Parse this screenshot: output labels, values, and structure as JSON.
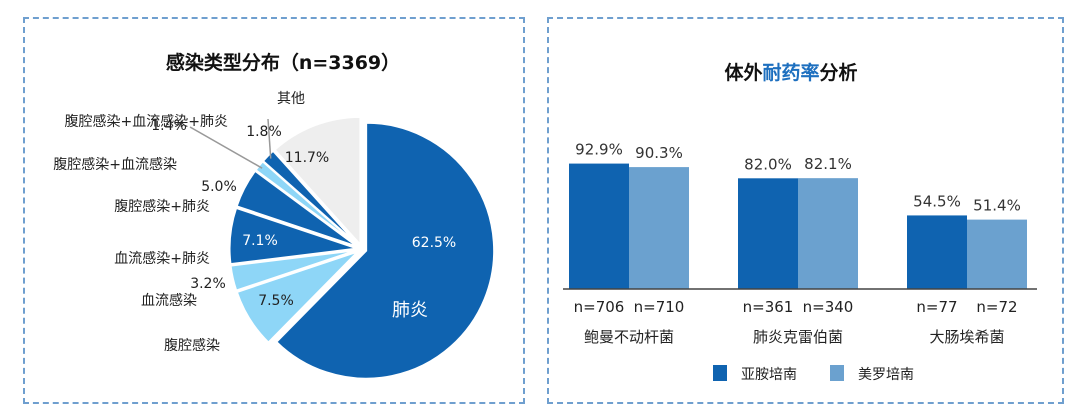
{
  "colors": {
    "dark_blue": "#0f63b0",
    "light_blue": "#6ba1cf",
    "sky_blue": "#8ed6f7",
    "gray": "#eeeeee",
    "border": "#6f9fcf",
    "title_accent": "#1d6fbf"
  },
  "chart_data": [
    {
      "type": "pie",
      "title": "感染类型分布（n=3369）",
      "slices": [
        {
          "label": "肺炎",
          "value": 62.5,
          "value_label": "62.5%",
          "color": "#0f63b0"
        },
        {
          "label": "腹腔感染",
          "value": 7.5,
          "value_label": "7.5%",
          "color": "#8ed6f7"
        },
        {
          "label": "血流感染",
          "value": 3.2,
          "value_label": "3.2%",
          "color": "#8ed6f7"
        },
        {
          "label": "血流感染+肺炎",
          "value": 7.1,
          "value_label": "7.1%",
          "color": "#0f63b0"
        },
        {
          "label": "腹腔感染+肺炎",
          "value": 5.0,
          "value_label": "5.0%",
          "color": "#0f63b0"
        },
        {
          "label": "腹腔感染+血流感染",
          "value": 1.4,
          "value_label": "1.4%",
          "color": "#8ed6f7"
        },
        {
          "label": "腹腔感染+血流感染+肺炎",
          "value": 1.8,
          "value_label": "1.8%",
          "color": "#0f63b0"
        },
        {
          "label": "其他",
          "value": 11.7,
          "value_label": "11.7%",
          "color": "#eeeeee"
        }
      ]
    },
    {
      "type": "bar",
      "title_parts": [
        "体外",
        "耐药率",
        "分析"
      ],
      "categories": [
        "鲍曼不动杆菌",
        "肺炎克雷伯菌",
        "大肠埃希菌"
      ],
      "series": [
        {
          "name": "亚胺培南",
          "values": [
            92.9,
            82.0,
            54.5
          ],
          "value_labels": [
            "92.9%",
            "82.0%",
            "54.5%"
          ],
          "n_labels": [
            "n=706",
            "n=361",
            "n=77"
          ],
          "color": "#0f63b0"
        },
        {
          "name": "美罗培南",
          "values": [
            90.3,
            82.1,
            51.4
          ],
          "value_labels": [
            "90.3%",
            "82.1%",
            "51.4%"
          ],
          "n_labels": [
            "n=710",
            "n=340",
            "n=72"
          ],
          "color": "#6ba1cf"
        }
      ],
      "ylim": [
        0,
        100
      ],
      "grid": false,
      "legend": "bottom"
    }
  ]
}
